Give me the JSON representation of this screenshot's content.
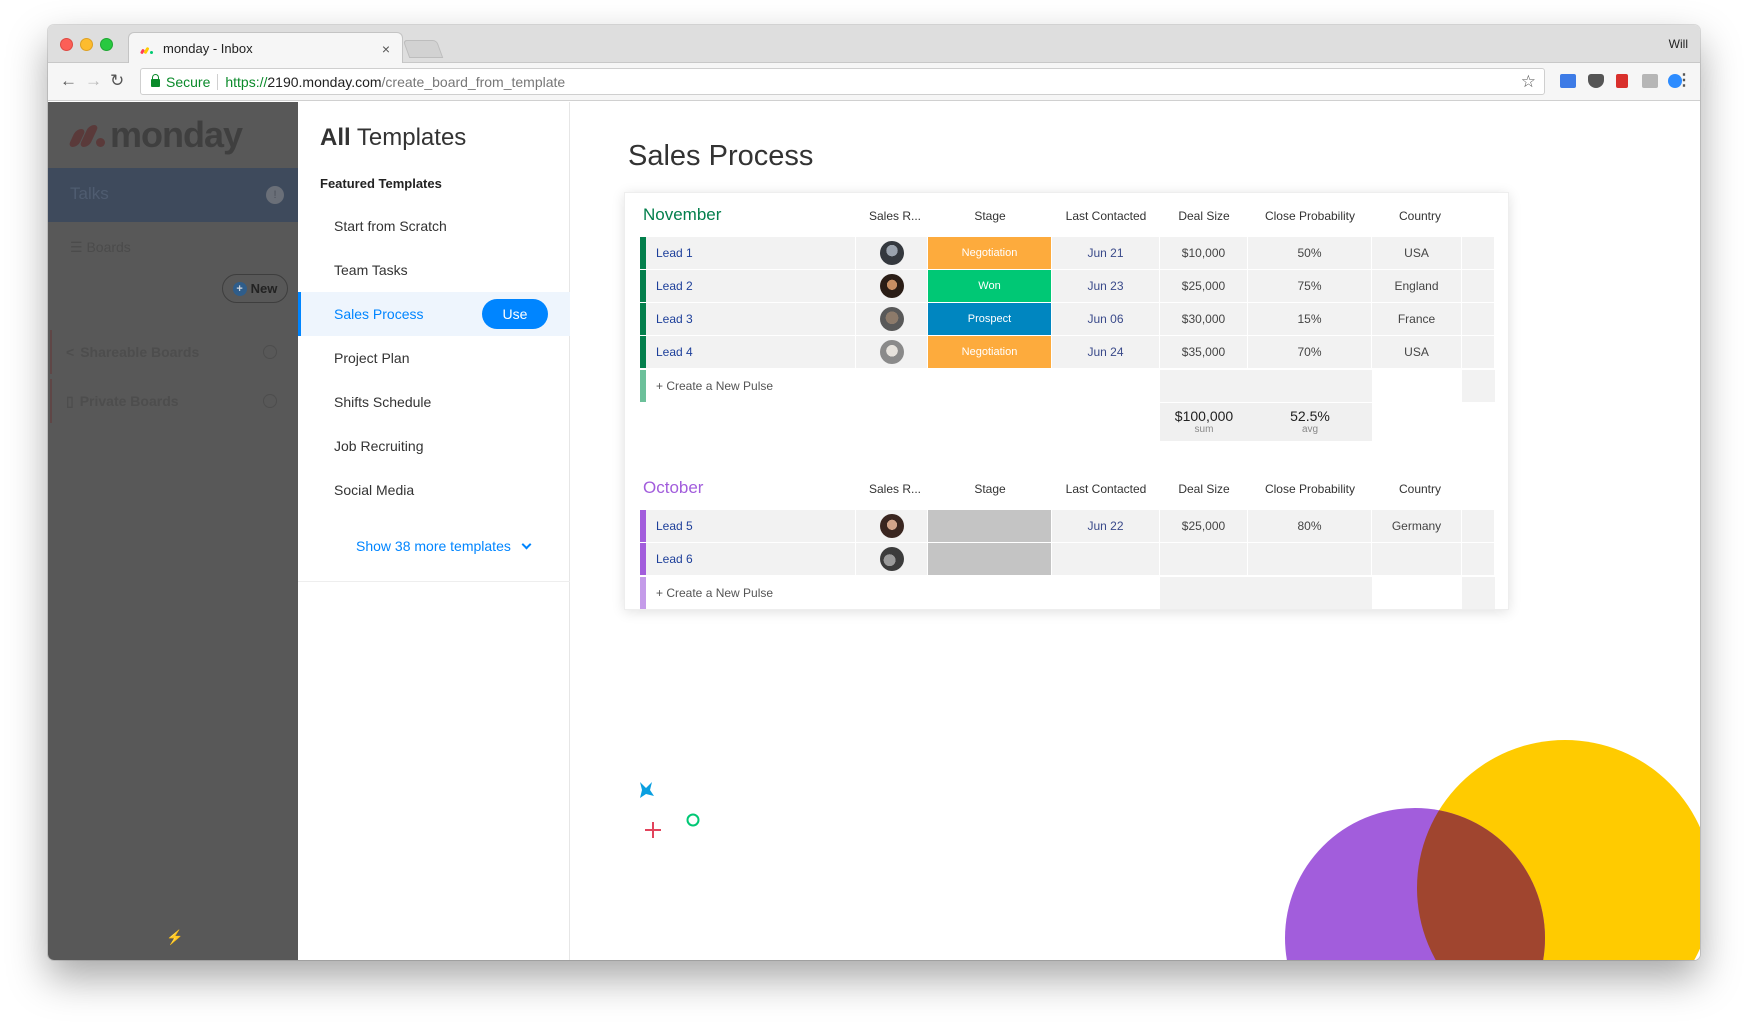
{
  "browser": {
    "tab_title": "monday - Inbox",
    "tab_close": "×",
    "profile_name": "Will",
    "secure_label": "Secure",
    "url_scheme": "https://",
    "url_host": "2190.monday.com",
    "url_path": "/create_board_from_template"
  },
  "leftnav": {
    "logo_text": "monday",
    "talks_label": "Talks",
    "talks_badge": "!",
    "boards_label": "Boards",
    "new_button": "New",
    "shareable_boards": "Shareable Boards",
    "private_boards": "Private Boards"
  },
  "templates": {
    "title_bold": "All",
    "title_rest": "Templates",
    "featured_label": "Featured Templates",
    "items": [
      {
        "label": "Start from Scratch"
      },
      {
        "label": "Team Tasks"
      },
      {
        "label": "Sales Process"
      },
      {
        "label": "Project Plan"
      },
      {
        "label": "Shifts Schedule"
      },
      {
        "label": "Job Recruiting"
      },
      {
        "label": "Social Media"
      }
    ],
    "use_button": "Use",
    "more_link": "Show 38 more templates"
  },
  "board": {
    "title": "Sales Process",
    "columns": [
      "Sales R...",
      "Stage",
      "Last Contacted",
      "Deal Size",
      "Close Probability",
      "Country"
    ],
    "groups": [
      {
        "name": "November",
        "color": "#037f4c",
        "rows": [
          {
            "name": "Lead 1",
            "stage": "Negotiation",
            "stage_color": "#fdab3d",
            "date": "Jun 21",
            "deal": "$10,000",
            "prob": "50%",
            "country": "USA"
          },
          {
            "name": "Lead 2",
            "stage": "Won",
            "stage_color": "#00c875",
            "date": "Jun 23",
            "deal": "$25,000",
            "prob": "75%",
            "country": "England"
          },
          {
            "name": "Lead 3",
            "stage": "Prospect",
            "stage_color": "#0086c0",
            "date": "Jun 06",
            "deal": "$30,000",
            "prob": "15%",
            "country": "France"
          },
          {
            "name": "Lead 4",
            "stage": "Negotiation",
            "stage_color": "#fdab3d",
            "date": "Jun 24",
            "deal": "$35,000",
            "prob": "70%",
            "country": "USA"
          }
        ],
        "new_pulse": "+ Create a New Pulse",
        "sum_value": "$100,000",
        "sum_label": "sum",
        "avg_value": "52.5%",
        "avg_label": "avg"
      },
      {
        "name": "October",
        "color": "#a25ddc",
        "rows": [
          {
            "name": "Lead 5",
            "stage": "",
            "stage_color": "#c4c4c4",
            "date": "Jun 22",
            "deal": "$25,000",
            "prob": "80%",
            "country": "Germany"
          },
          {
            "name": "Lead 6",
            "stage": "",
            "stage_color": "#c4c4c4",
            "date": "",
            "deal": "",
            "prob": "",
            "country": ""
          }
        ],
        "new_pulse": "+ Create a New Pulse"
      }
    ]
  },
  "colors": {
    "accent": "#0085ff",
    "decor_yellow": "#ffcb00",
    "decor_purple": "#a25ddc",
    "decor_overlap": "#a0452f"
  }
}
